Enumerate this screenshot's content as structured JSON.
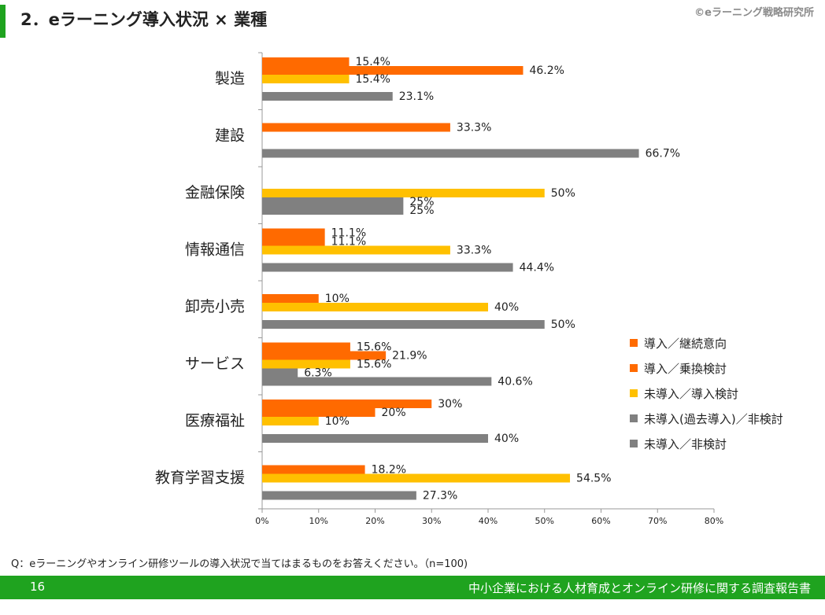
{
  "header": {
    "title": "2．eラーニング導入状況 × 業種",
    "copyright": "©eラーニング戦略研究所"
  },
  "footer": {
    "question": "Q：eラーニングやオンライン研修ツールの導入状況で当てはまるものをお答えください。（n=100)",
    "page_number": "16",
    "report_title": "中小企業における人材育成とオンライン研修に関する調査報告書"
  },
  "chart_data": {
    "type": "bar",
    "orientation": "horizontal",
    "categories": [
      "製造",
      "建設",
      "金融保険",
      "情報通信",
      "卸売小売",
      "サービス",
      "医療福祉",
      "教育学習支援"
    ],
    "series": [
      {
        "name": "導入／継続意向",
        "color": "#ff6a00",
        "values": [
          15.4,
          0,
          0,
          11.1,
          0,
          15.6,
          30,
          0
        ],
        "labels": [
          "15.4%",
          "",
          "",
          "11.1%",
          "",
          "15.6%",
          "30%",
          ""
        ]
      },
      {
        "name": "導入／乗換検討",
        "color": "#ff6a00",
        "values": [
          46.2,
          33.3,
          0,
          11.1,
          10,
          21.9,
          20,
          18.2
        ],
        "labels": [
          "46.2%",
          "33.3%",
          "",
          "11.1%",
          "10%",
          "21.9%",
          "20%",
          "18.2%"
        ]
      },
      {
        "name": "未導入／導入検討",
        "color": "#ffc000",
        "values": [
          15.4,
          0,
          50,
          33.3,
          40,
          15.6,
          10,
          54.5
        ],
        "labels": [
          "15.4%",
          "",
          "50%",
          "33.3%",
          "40%",
          "15.6%",
          "10%",
          "54.5%"
        ]
      },
      {
        "name": "未導入(過去導入)／非検討",
        "color": "#808080",
        "values": [
          0,
          0,
          25,
          0,
          0,
          6.3,
          0,
          0
        ],
        "labels": [
          "",
          "",
          "25%",
          "",
          "",
          "6.3%",
          "",
          ""
        ]
      },
      {
        "name": "未導入／非検討",
        "color": "#808080",
        "values": [
          23.1,
          66.7,
          25,
          44.4,
          50,
          40.6,
          40,
          27.3
        ],
        "labels": [
          "23.1%",
          "66.7%",
          "25%",
          "44.4%",
          "50%",
          "40.6%",
          "40%",
          "27.3%"
        ]
      }
    ],
    "xlim": [
      0,
      80
    ],
    "xticks": [
      "0%",
      "10%",
      "20%",
      "30%",
      "40%",
      "50%",
      "60%",
      "70%",
      "80%"
    ],
    "legend_position": "right",
    "grid": false
  }
}
